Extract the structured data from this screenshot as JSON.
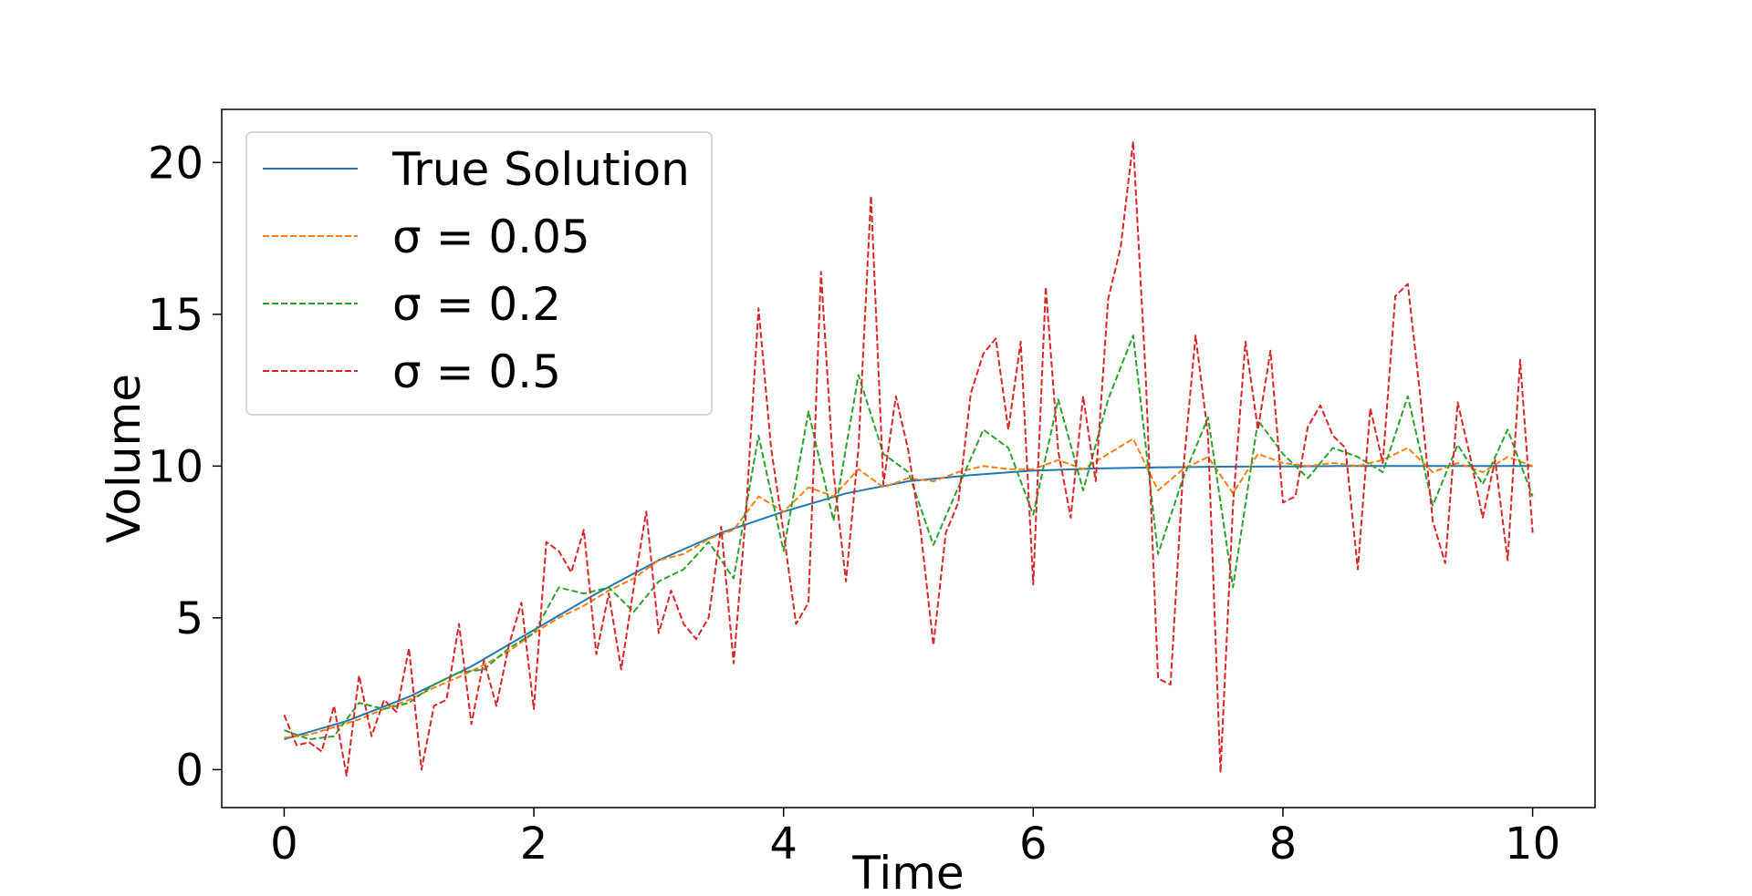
{
  "chart_data": {
    "type": "line",
    "xlabel": "Time",
    "ylabel": "Volume",
    "xlim": [
      -0.5,
      10.5
    ],
    "ylim": [
      -1.25,
      21.75
    ],
    "xticks": [
      0,
      2,
      4,
      6,
      8,
      10
    ],
    "yticks": [
      0,
      5,
      10,
      15,
      20
    ],
    "grid": false,
    "legend_position": "top-left",
    "series": [
      {
        "name": "True Solution",
        "color": "#1f77b4",
        "style": "solid",
        "x": [
          0,
          0.5,
          1,
          1.5,
          2,
          2.5,
          3,
          3.5,
          4,
          4.5,
          5,
          5.5,
          6,
          6.5,
          7,
          7.5,
          8,
          8.5,
          9,
          9.5,
          10
        ],
        "y": [
          1.0,
          1.6,
          2.4,
          3.4,
          4.6,
          5.8,
          6.9,
          7.8,
          8.5,
          9.1,
          9.5,
          9.7,
          9.85,
          9.92,
          9.96,
          9.98,
          9.99,
          10.0,
          10.0,
          10.0,
          10.0
        ]
      },
      {
        "name": "σ = 0.05",
        "color": "#ff7f0e",
        "style": "dashed",
        "x": [
          0,
          0.2,
          0.4,
          0.6,
          0.8,
          1.0,
          1.2,
          1.4,
          1.6,
          1.8,
          2.0,
          2.2,
          2.4,
          2.6,
          2.8,
          3.0,
          3.2,
          3.4,
          3.6,
          3.8,
          4.0,
          4.2,
          4.4,
          4.6,
          4.8,
          5.0,
          5.2,
          5.4,
          5.6,
          5.8,
          6.0,
          6.2,
          6.4,
          6.6,
          6.8,
          7.0,
          7.2,
          7.4,
          7.6,
          7.8,
          8.0,
          8.2,
          8.4,
          8.6,
          8.8,
          9.0,
          9.2,
          9.4,
          9.6,
          9.8,
          10.0
        ],
        "y": [
          1.05,
          1.15,
          1.4,
          1.65,
          2.0,
          2.3,
          2.7,
          3.05,
          3.45,
          3.9,
          4.5,
          5.0,
          5.4,
          5.9,
          6.3,
          6.9,
          7.1,
          7.6,
          7.9,
          9.0,
          8.5,
          9.3,
          9.0,
          9.9,
          9.3,
          9.6,
          9.5,
          9.8,
          10.0,
          9.9,
          9.9,
          10.2,
          9.9,
          10.4,
          10.9,
          9.2,
          9.9,
          10.3,
          9.1,
          10.4,
          10.1,
          10.0,
          10.1,
          10.0,
          10.2,
          10.6,
          9.8,
          10.1,
          9.8,
          10.3,
          10.0
        ]
      },
      {
        "name": "σ = 0.2",
        "color": "#2ca02c",
        "style": "dashed",
        "x": [
          0,
          0.2,
          0.4,
          0.6,
          0.8,
          1.0,
          1.2,
          1.4,
          1.6,
          1.8,
          2.0,
          2.2,
          2.4,
          2.6,
          2.8,
          3.0,
          3.2,
          3.4,
          3.6,
          3.8,
          4.0,
          4.2,
          4.4,
          4.6,
          4.8,
          5.0,
          5.2,
          5.4,
          5.6,
          5.8,
          6.0,
          6.2,
          6.4,
          6.6,
          6.8,
          7.0,
          7.2,
          7.4,
          7.6,
          7.8,
          8.0,
          8.2,
          8.4,
          8.6,
          8.8,
          9.0,
          9.2,
          9.4,
          9.6,
          9.8,
          10.0
        ],
        "y": [
          1.3,
          1.0,
          1.1,
          2.2,
          2.0,
          2.2,
          2.8,
          3.2,
          3.3,
          4.0,
          4.5,
          6.0,
          5.8,
          6.0,
          5.2,
          6.2,
          6.6,
          7.5,
          6.3,
          11.0,
          7.2,
          11.8,
          8.2,
          13.0,
          10.4,
          9.8,
          7.4,
          9.3,
          11.2,
          10.6,
          8.4,
          12.2,
          9.2,
          12.2,
          14.3,
          7.1,
          9.6,
          11.6,
          6.0,
          11.5,
          10.4,
          9.6,
          10.6,
          10.3,
          9.8,
          12.3,
          8.7,
          10.7,
          9.4,
          11.2,
          9.0
        ]
      },
      {
        "name": "σ = 0.5",
        "color": "#d62728",
        "style": "dashed",
        "x": [
          0,
          0.1,
          0.2,
          0.3,
          0.4,
          0.5,
          0.6,
          0.7,
          0.8,
          0.9,
          1.0,
          1.1,
          1.2,
          1.3,
          1.4,
          1.5,
          1.6,
          1.7,
          1.8,
          1.9,
          2.0,
          2.1,
          2.2,
          2.3,
          2.4,
          2.5,
          2.6,
          2.7,
          2.8,
          2.9,
          3.0,
          3.1,
          3.2,
          3.3,
          3.4,
          3.5,
          3.6,
          3.7,
          3.8,
          3.9,
          4.0,
          4.1,
          4.2,
          4.3,
          4.4,
          4.5,
          4.6,
          4.7,
          4.8,
          4.9,
          5.0,
          5.1,
          5.2,
          5.3,
          5.4,
          5.5,
          5.6,
          5.7,
          5.8,
          5.9,
          6.0,
          6.1,
          6.2,
          6.3,
          6.4,
          6.5,
          6.6,
          6.7,
          6.8,
          6.9,
          7.0,
          7.1,
          7.2,
          7.3,
          7.4,
          7.5,
          7.6,
          7.7,
          7.8,
          7.9,
          8.0,
          8.1,
          8.2,
          8.3,
          8.4,
          8.5,
          8.6,
          8.7,
          8.8,
          8.9,
          9.0,
          9.1,
          9.2,
          9.3,
          9.4,
          9.5,
          9.6,
          9.7,
          9.8,
          9.9,
          10.0
        ],
        "y": [
          1.8,
          0.8,
          0.9,
          0.6,
          2.1,
          -0.2,
          3.1,
          1.1,
          2.3,
          1.9,
          4.0,
          0.0,
          2.1,
          2.3,
          4.8,
          1.5,
          3.6,
          2.1,
          4.1,
          5.5,
          2.0,
          7.5,
          7.2,
          6.5,
          7.9,
          3.8,
          5.8,
          3.3,
          6.0,
          8.5,
          4.5,
          5.9,
          4.8,
          4.3,
          5.0,
          8.0,
          3.5,
          8.5,
          15.2,
          10.6,
          7.8,
          4.8,
          5.5,
          16.4,
          9.8,
          6.2,
          10.6,
          18.9,
          9.4,
          12.3,
          10.5,
          7.8,
          4.1,
          7.8,
          8.8,
          12.4,
          13.7,
          14.2,
          11.2,
          14.1,
          6.1,
          15.9,
          10.5,
          8.3,
          12.3,
          9.5,
          15.5,
          17.2,
          20.7,
          13.0,
          3.0,
          2.8,
          9.8,
          14.3,
          11.0,
          -0.1,
          8.7,
          14.1,
          11.2,
          13.8,
          8.8,
          9.0,
          11.3,
          12.0,
          11.0,
          10.6,
          6.6,
          11.9,
          10.1,
          15.6,
          16.0,
          12.3,
          8.2,
          6.8,
          12.1,
          10.3,
          8.3,
          10.2,
          6.9,
          13.5,
          7.8
        ]
      }
    ]
  }
}
